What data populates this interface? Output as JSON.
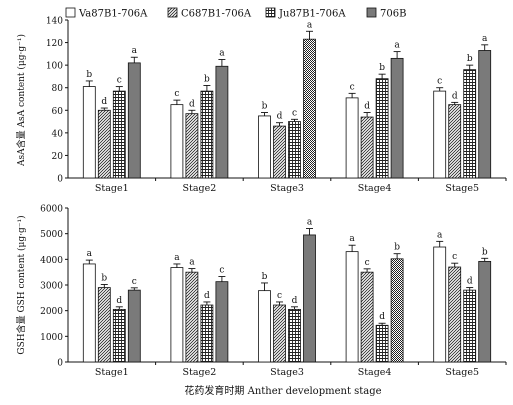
{
  "legend": {
    "items": [
      {
        "name": "Va87B1-706A",
        "pattern": "white"
      },
      {
        "name": "C687B1-706A",
        "pattern": "diag"
      },
      {
        "name": "Ju87B1-706A",
        "pattern": "grid"
      },
      {
        "name": "706B",
        "pattern": "gray"
      }
    ]
  },
  "colors": {
    "dark_gray": "#7a7a7a",
    "axis": "#111111",
    "check": "#222222"
  },
  "xaxis_label": "花药发育时期 Anther development stage",
  "chart_data": [
    {
      "type": "bar",
      "ylabel": "AsA含量 AsA content (μg·g⁻¹)",
      "ylim": [
        0,
        140
      ],
      "yticks": [
        0,
        20,
        40,
        60,
        80,
        100,
        120,
        140
      ],
      "categories": [
        "Stage1",
        "Stage2",
        "Stage3",
        "Stage4",
        "Stage5"
      ],
      "series": [
        {
          "name": "Va87B1-706A",
          "values": [
            81,
            65,
            55,
            71,
            77
          ],
          "errors": [
            5,
            4,
            3,
            4,
            3
          ],
          "letters": [
            "b",
            "c",
            "b",
            "c",
            "c"
          ]
        },
        {
          "name": "C687B1-706A",
          "values": [
            60,
            57,
            46,
            54,
            65
          ],
          "errors": [
            2,
            3,
            3,
            4,
            2
          ],
          "letters": [
            "d",
            "d",
            "d",
            "d",
            "d"
          ]
        },
        {
          "name": "Ju87B1-706A",
          "values": [
            77,
            77,
            50,
            88,
            96
          ],
          "errors": [
            4,
            5,
            2,
            4,
            4
          ],
          "letters": [
            "c",
            "b",
            "c",
            "b",
            "b"
          ]
        },
        {
          "name": "706B",
          "values": [
            102,
            99,
            123,
            106,
            113
          ],
          "errors": [
            5,
            6,
            7,
            6,
            5
          ],
          "letters": [
            "a",
            "a",
            "a",
            "a",
            "a"
          ]
        }
      ]
    },
    {
      "type": "bar",
      "ylabel": "GSH含量 GSH content (μg·g⁻¹)",
      "ylim": [
        0,
        6000
      ],
      "yticks": [
        0,
        1000,
        2000,
        3000,
        4000,
        5000,
        6000
      ],
      "categories": [
        "Stage1",
        "Stage2",
        "Stage3",
        "Stage4",
        "Stage5"
      ],
      "series": [
        {
          "name": "Va87B1-706A",
          "values": [
            3820,
            3680,
            2780,
            4300,
            4480
          ],
          "errors": [
            150,
            140,
            300,
            250,
            220
          ],
          "letters": [
            "a",
            "a",
            "b",
            "a",
            "a"
          ]
        },
        {
          "name": "C687B1-706A",
          "values": [
            2900,
            3500,
            2220,
            3500,
            3700
          ],
          "errors": [
            120,
            140,
            120,
            130,
            150
          ],
          "letters": [
            "b",
            "a",
            "c",
            "c",
            "c"
          ]
        },
        {
          "name": "Ju87B1-706A",
          "values": [
            2050,
            2220,
            2050,
            1430,
            2800
          ],
          "errors": [
            100,
            120,
            100,
            80,
            100
          ],
          "letters": [
            "d",
            "d",
            "d",
            "d",
            "d"
          ]
        },
        {
          "name": "706B",
          "values": [
            2800,
            3130,
            4950,
            4020,
            3920
          ],
          "errors": [
            90,
            200,
            250,
            200,
            120
          ],
          "letters": [
            "c",
            "c",
            "a",
            "b",
            "b"
          ]
        }
      ]
    }
  ]
}
